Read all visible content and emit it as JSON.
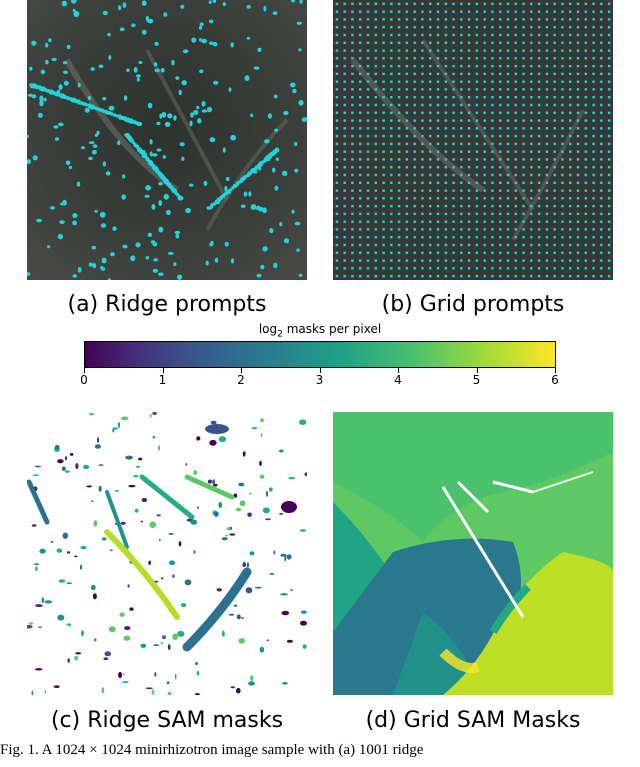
{
  "panels": {
    "a": {
      "caption": "(a) Ridge prompts"
    },
    "b": {
      "caption": "(b) Grid prompts"
    },
    "c": {
      "caption": "(c) Ridge SAM masks"
    },
    "d": {
      "caption": "(d) Grid SAM Masks"
    }
  },
  "colorbar": {
    "label_prefix": "log",
    "label_sub": "2",
    "label_suffix": " masks per pixel",
    "ticks": [
      "0",
      "1",
      "2",
      "3",
      "4",
      "5",
      "6"
    ],
    "range": [
      0,
      6
    ],
    "colormap": "viridis"
  },
  "colors": {
    "prompt_points": "#22d3d8",
    "soil_dark": "#2f3230"
  },
  "figure_caption": "Fig. 1.  A 1024 × 1024 minirhizotron image sample with (a) 1001 ridge"
}
